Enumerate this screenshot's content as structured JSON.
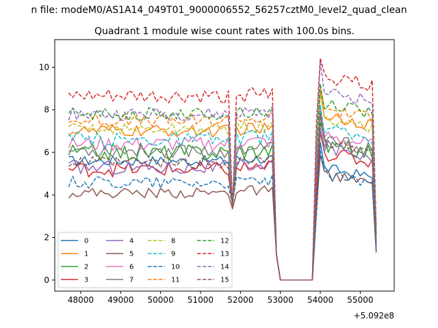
{
  "chart_data": {
    "type": "line",
    "suptitle": "n file: modeM0/AS1A14_049T01_9000006552_56257cztM0_level2_quad_clean",
    "title": "Quadrant 1 module wise count rates with 100.0s bins.",
    "offset_label": "+5.092e8",
    "xlim": [
      47350,
      55850
    ],
    "ylim": [
      -0.52,
      11.3
    ],
    "x_ticks": [
      48000,
      49000,
      50000,
      51000,
      52000,
      53000,
      54000,
      55000
    ],
    "x_tick_labels": [
      "48000",
      "49000",
      "50000",
      "51000",
      "52000",
      "53000",
      "54000",
      "55000"
    ],
    "y_ticks": [
      0,
      2,
      4,
      6,
      8,
      10
    ],
    "y_tick_labels": [
      "0",
      "2",
      "4",
      "6",
      "8",
      "10"
    ],
    "grid": false,
    "legend_position": "lower-left",
    "legend_columns": 4,
    "x": {
      "start": 47700,
      "step": 100,
      "count": 78
    },
    "series": [
      {
        "name": "0",
        "color": "#1f77b4",
        "dash": "solid",
        "base": 5.6,
        "b2": 5.3,
        "noise": 0.25
      },
      {
        "name": "1",
        "color": "#ff7f0e",
        "dash": "solid",
        "base": 7.0,
        "b2": 7.8,
        "noise": 0.3
      },
      {
        "name": "2",
        "color": "#2ca02c",
        "dash": "solid",
        "base": 6.0,
        "b2": 6.4,
        "noise": 0.4
      },
      {
        "name": "3",
        "color": "#d62728",
        "dash": "solid",
        "base": 5.2,
        "b2": 6.0,
        "noise": 0.35
      },
      {
        "name": "4",
        "color": "#9467bd",
        "dash": "solid",
        "base": 5.3,
        "b2": 6.3,
        "noise": 0.35
      },
      {
        "name": "5",
        "color": "#8c564b",
        "dash": "solid",
        "base": 4.1,
        "b2": 5.0,
        "noise": 0.25
      },
      {
        "name": "6",
        "color": "#e377c2",
        "dash": "solid",
        "base": 6.4,
        "b2": 6.8,
        "noise": 0.35
      },
      {
        "name": "7",
        "color": "#7f7f7f",
        "dash": "solid",
        "base": 6.1,
        "b2": 6.6,
        "noise": 0.35
      },
      {
        "name": "8",
        "color": "#bcbd22",
        "dash": "dashed",
        "base": 7.1,
        "b2": 7.6,
        "noise": 0.3
      },
      {
        "name": "9",
        "color": "#17becf",
        "dash": "dashed",
        "base": 6.6,
        "b2": 7.1,
        "noise": 0.35
      },
      {
        "name": "10",
        "color": "#1f77b4",
        "dash": "dashed",
        "base": 4.6,
        "b2": 5.0,
        "noise": 0.3
      },
      {
        "name": "11",
        "color": "#ff7f0e",
        "dash": "dashed",
        "base": 7.5,
        "b2": 8.1,
        "noise": 0.3
      },
      {
        "name": "12",
        "color": "#2ca02c",
        "dash": "dashed",
        "base": 7.8,
        "b2": 8.3,
        "noise": 0.3
      },
      {
        "name": "13",
        "color": "#d62728",
        "dash": "dashed",
        "base": 8.6,
        "b2": 9.6,
        "noise": 0.35
      },
      {
        "name": "14",
        "color": "#9467bd",
        "dash": "dashed",
        "base": 7.8,
        "b2": 8.9,
        "noise": 0.3
      },
      {
        "name": "15",
        "color": "#8c564b",
        "dash": "dashed",
        "base": 5.5,
        "b2": 6.5,
        "noise": 0.3
      }
    ]
  }
}
